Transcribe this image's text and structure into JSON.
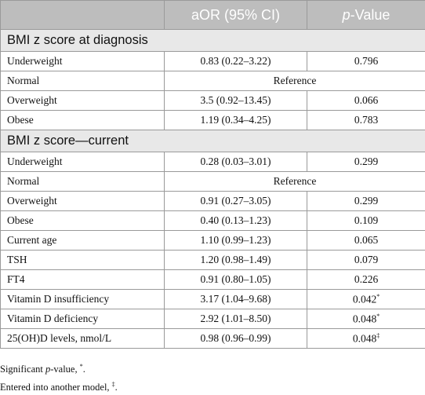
{
  "header": {
    "aor": "aOR (95% CI)",
    "p_italic": "p",
    "p_rest": "-Value"
  },
  "sections": [
    {
      "title": "BMI z score at diagnosis",
      "rows": [
        [
          "Underweight",
          "0.83 (0.22–3.22)",
          "0.796"
        ],
        [
          "Normal",
          "Reference"
        ],
        [
          "Overweight",
          "3.5 (0.92–13.45)",
          "0.066"
        ],
        [
          "Obese",
          "1.19 (0.34–4.25)",
          "0.783"
        ]
      ]
    },
    {
      "title": "BMI z score—current",
      "rows": [
        [
          "Underweight",
          "0.28 (0.03–3.01)",
          "0.299"
        ],
        [
          "Normal",
          "Reference"
        ],
        [
          "Overweight",
          "0.91 (0.27–3.05)",
          "0.299"
        ],
        [
          "Obese",
          "0.40 (0.13–1.23)",
          "0.109"
        ],
        [
          "Current age",
          "1.10 (0.99–1.23)",
          "0.065"
        ],
        [
          "TSH",
          "1.20 (0.98–1.49)",
          "0.079"
        ],
        [
          "FT4",
          "0.91 (0.80–1.05)",
          "0.226"
        ],
        [
          "Vitamin D insufficiency",
          "3.17 (1.04–9.68)",
          {
            "text": "0.042",
            "sup": "*"
          }
        ],
        [
          "Vitamin D deficiency",
          "2.92 (1.01–8.50)",
          {
            "text": "0.048",
            "sup": "*"
          }
        ],
        [
          "25(OH)D levels, nmol/L",
          "0.98 (0.96–0.99)",
          {
            "text": "0.048",
            "sup": "‡"
          }
        ]
      ]
    }
  ],
  "footnotes": [
    {
      "before": "Significant ",
      "italic": "p",
      "after": "-value, ",
      "sup": "*",
      "end": "."
    },
    {
      "before": "Entered into another model, ",
      "sup": "‡",
      "end": "."
    }
  ]
}
